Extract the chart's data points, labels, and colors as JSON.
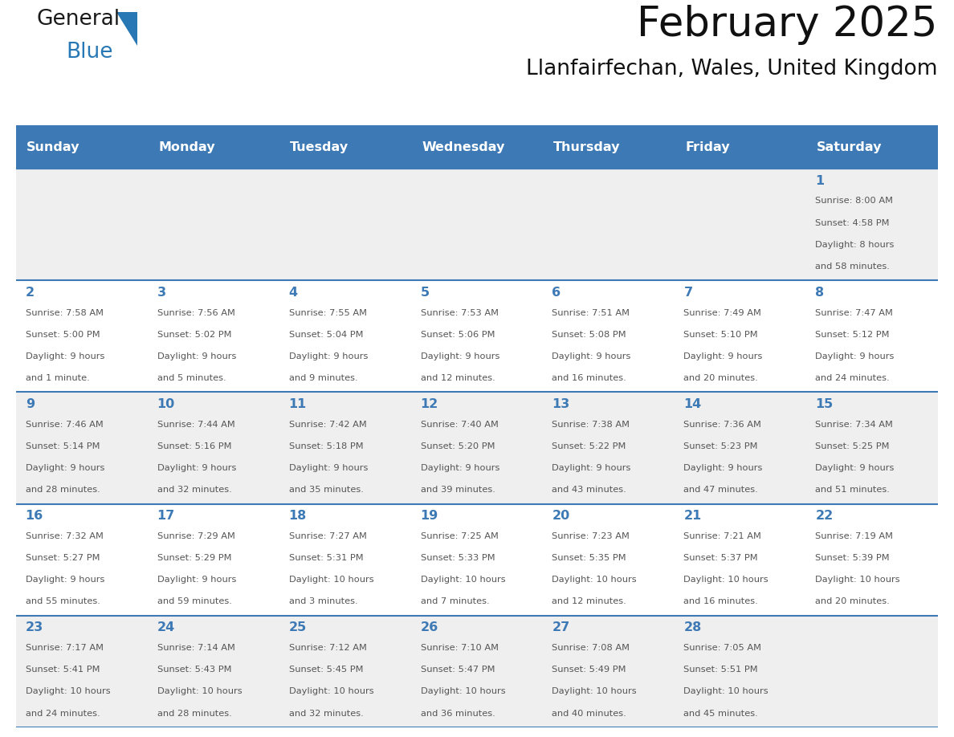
{
  "title": "February 2025",
  "subtitle": "Llanfairfechan, Wales, United Kingdom",
  "header_color": "#3d7ab5",
  "header_text_color": "#ffffff",
  "cell_bg_even": "#efefef",
  "cell_bg_odd": "#ffffff",
  "border_color": "#3d7ab5",
  "day_number_color": "#3d7ab5",
  "text_color": "#555555",
  "days_of_week": [
    "Sunday",
    "Monday",
    "Tuesday",
    "Wednesday",
    "Thursday",
    "Friday",
    "Saturday"
  ],
  "weeks": [
    [
      {
        "day": null,
        "sunrise": null,
        "sunset": null,
        "daylight": null
      },
      {
        "day": null,
        "sunrise": null,
        "sunset": null,
        "daylight": null
      },
      {
        "day": null,
        "sunrise": null,
        "sunset": null,
        "daylight": null
      },
      {
        "day": null,
        "sunrise": null,
        "sunset": null,
        "daylight": null
      },
      {
        "day": null,
        "sunrise": null,
        "sunset": null,
        "daylight": null
      },
      {
        "day": null,
        "sunrise": null,
        "sunset": null,
        "daylight": null
      },
      {
        "day": 1,
        "sunrise": "8:00 AM",
        "sunset": "4:58 PM",
        "daylight": "8 hours\nand 58 minutes."
      }
    ],
    [
      {
        "day": 2,
        "sunrise": "7:58 AM",
        "sunset": "5:00 PM",
        "daylight": "9 hours\nand 1 minute."
      },
      {
        "day": 3,
        "sunrise": "7:56 AM",
        "sunset": "5:02 PM",
        "daylight": "9 hours\nand 5 minutes."
      },
      {
        "day": 4,
        "sunrise": "7:55 AM",
        "sunset": "5:04 PM",
        "daylight": "9 hours\nand 9 minutes."
      },
      {
        "day": 5,
        "sunrise": "7:53 AM",
        "sunset": "5:06 PM",
        "daylight": "9 hours\nand 12 minutes."
      },
      {
        "day": 6,
        "sunrise": "7:51 AM",
        "sunset": "5:08 PM",
        "daylight": "9 hours\nand 16 minutes."
      },
      {
        "day": 7,
        "sunrise": "7:49 AM",
        "sunset": "5:10 PM",
        "daylight": "9 hours\nand 20 minutes."
      },
      {
        "day": 8,
        "sunrise": "7:47 AM",
        "sunset": "5:12 PM",
        "daylight": "9 hours\nand 24 minutes."
      }
    ],
    [
      {
        "day": 9,
        "sunrise": "7:46 AM",
        "sunset": "5:14 PM",
        "daylight": "9 hours\nand 28 minutes."
      },
      {
        "day": 10,
        "sunrise": "7:44 AM",
        "sunset": "5:16 PM",
        "daylight": "9 hours\nand 32 minutes."
      },
      {
        "day": 11,
        "sunrise": "7:42 AM",
        "sunset": "5:18 PM",
        "daylight": "9 hours\nand 35 minutes."
      },
      {
        "day": 12,
        "sunrise": "7:40 AM",
        "sunset": "5:20 PM",
        "daylight": "9 hours\nand 39 minutes."
      },
      {
        "day": 13,
        "sunrise": "7:38 AM",
        "sunset": "5:22 PM",
        "daylight": "9 hours\nand 43 minutes."
      },
      {
        "day": 14,
        "sunrise": "7:36 AM",
        "sunset": "5:23 PM",
        "daylight": "9 hours\nand 47 minutes."
      },
      {
        "day": 15,
        "sunrise": "7:34 AM",
        "sunset": "5:25 PM",
        "daylight": "9 hours\nand 51 minutes."
      }
    ],
    [
      {
        "day": 16,
        "sunrise": "7:32 AM",
        "sunset": "5:27 PM",
        "daylight": "9 hours\nand 55 minutes."
      },
      {
        "day": 17,
        "sunrise": "7:29 AM",
        "sunset": "5:29 PM",
        "daylight": "9 hours\nand 59 minutes."
      },
      {
        "day": 18,
        "sunrise": "7:27 AM",
        "sunset": "5:31 PM",
        "daylight": "10 hours\nand 3 minutes."
      },
      {
        "day": 19,
        "sunrise": "7:25 AM",
        "sunset": "5:33 PM",
        "daylight": "10 hours\nand 7 minutes."
      },
      {
        "day": 20,
        "sunrise": "7:23 AM",
        "sunset": "5:35 PM",
        "daylight": "10 hours\nand 12 minutes."
      },
      {
        "day": 21,
        "sunrise": "7:21 AM",
        "sunset": "5:37 PM",
        "daylight": "10 hours\nand 16 minutes."
      },
      {
        "day": 22,
        "sunrise": "7:19 AM",
        "sunset": "5:39 PM",
        "daylight": "10 hours\nand 20 minutes."
      }
    ],
    [
      {
        "day": 23,
        "sunrise": "7:17 AM",
        "sunset": "5:41 PM",
        "daylight": "10 hours\nand 24 minutes."
      },
      {
        "day": 24,
        "sunrise": "7:14 AM",
        "sunset": "5:43 PM",
        "daylight": "10 hours\nand 28 minutes."
      },
      {
        "day": 25,
        "sunrise": "7:12 AM",
        "sunset": "5:45 PM",
        "daylight": "10 hours\nand 32 minutes."
      },
      {
        "day": 26,
        "sunrise": "7:10 AM",
        "sunset": "5:47 PM",
        "daylight": "10 hours\nand 36 minutes."
      },
      {
        "day": 27,
        "sunrise": "7:08 AM",
        "sunset": "5:49 PM",
        "daylight": "10 hours\nand 40 minutes."
      },
      {
        "day": 28,
        "sunrise": "7:05 AM",
        "sunset": "5:51 PM",
        "daylight": "10 hours\nand 45 minutes."
      },
      {
        "day": null,
        "sunrise": null,
        "sunset": null,
        "daylight": null
      }
    ]
  ],
  "logo_general_color": "#1a1a1a",
  "logo_blue_color": "#2878b5",
  "figsize": [
    11.88,
    9.18
  ],
  "dpi": 100
}
